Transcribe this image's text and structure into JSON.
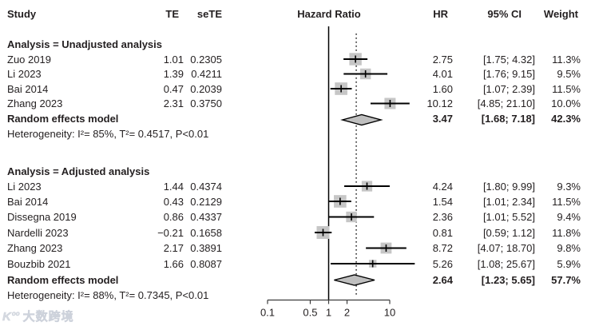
{
  "chart_data": {
    "type": "scatter",
    "subtype": "forest_plot",
    "title": "Hazard Ratio",
    "xscale": "log",
    "xlim": [
      0.1,
      26
    ],
    "grid": false,
    "axis": {
      "ticks": [
        0.1,
        0.5,
        1,
        2,
        10
      ],
      "tick_labels": [
        "0.1",
        "0.5",
        "1",
        "2",
        "10"
      ],
      "solid_ref": 1,
      "dotted_ref": 2.83
    },
    "columns": {
      "study": "Study",
      "te": "TE",
      "sete": "seTE",
      "plot": "Hazard Ratio",
      "hr": "HR",
      "ci": "95% CI",
      "weight": "Weight"
    },
    "sections": [
      {
        "label": "Analysis = Unadjusted analysis",
        "studies": [
          {
            "study": "Zuo 2019",
            "te": "1.01",
            "sete": "0.2305",
            "hr": 2.75,
            "lo": 1.75,
            "hi": 4.32,
            "hr_text": "2.75",
            "ci_text": "[1.75; 4.32]",
            "weight": 11.3,
            "weight_text": "11.3%"
          },
          {
            "study": "Li 2023",
            "te": "1.39",
            "sete": "0.4211",
            "hr": 4.01,
            "lo": 1.76,
            "hi": 9.15,
            "hr_text": "4.01",
            "ci_text": "[1.76; 9.15]",
            "weight": 9.5,
            "weight_text": "9.5%"
          },
          {
            "study": "Bai 2014",
            "te": "0.47",
            "sete": "0.2039",
            "hr": 1.6,
            "lo": 1.07,
            "hi": 2.39,
            "hr_text": "1.60",
            "ci_text": "[1.07; 2.39]",
            "weight": 11.5,
            "weight_text": "11.5%"
          },
          {
            "study": "Zhang 2023",
            "te": "2.31",
            "sete": "0.3750",
            "hr": 10.12,
            "lo": 4.85,
            "hi": 21.1,
            "hr_text": "10.12",
            "ci_text": "[4.85; 21.10]",
            "weight": 10.0,
            "weight_text": "10.0%"
          }
        ],
        "summary": {
          "label": "Random effects model",
          "hr": 3.47,
          "lo": 1.68,
          "hi": 7.18,
          "hr_text": "3.47",
          "ci_text": "[1.68; 7.18]",
          "weight_text": "42.3%"
        },
        "heterogeneity": "Heterogeneity: I²= 85%, T²= 0.4517, P<0.01"
      },
      {
        "label": "Analysis = Adjusted analysis",
        "studies": [
          {
            "study": "Li 2023",
            "te": "1.44",
            "sete": "0.4374",
            "hr": 4.24,
            "lo": 1.8,
            "hi": 9.99,
            "hr_text": "4.24",
            "ci_text": "[1.80; 9.99]",
            "weight": 9.3,
            "weight_text": "9.3%"
          },
          {
            "study": "Bai 2014",
            "te": "0.43",
            "sete": "0.2129",
            "hr": 1.54,
            "lo": 1.01,
            "hi": 2.34,
            "hr_text": "1.54",
            "ci_text": "[1.01; 2.34]",
            "weight": 11.5,
            "weight_text": "11.5%"
          },
          {
            "study": "Dissegna 2019",
            "te": "0.86",
            "sete": "0.4337",
            "hr": 2.36,
            "lo": 1.01,
            "hi": 5.52,
            "hr_text": "2.36",
            "ci_text": "[1.01; 5.52]",
            "weight": 9.4,
            "weight_text": "9.4%"
          },
          {
            "study": "Nardelli 2023",
            "te": "−0.21",
            "sete": "0.1658",
            "hr": 0.81,
            "lo": 0.59,
            "hi": 1.12,
            "hr_text": "0.81",
            "ci_text": "[0.59; 1.12]",
            "weight": 11.8,
            "weight_text": "11.8%"
          },
          {
            "study": "Zhang 2023",
            "te": "2.17",
            "sete": "0.3891",
            "hr": 8.72,
            "lo": 4.07,
            "hi": 18.7,
            "hr_text": "8.72",
            "ci_text": "[4.07; 18.70]",
            "weight": 9.8,
            "weight_text": "9.8%"
          },
          {
            "study": "Bouzbib 2021",
            "te": "1.66",
            "sete": "0.8087",
            "hr": 5.26,
            "lo": 1.08,
            "hi": 25.67,
            "hr_text": "5.26",
            "ci_text": "[1.08; 25.67]",
            "weight": 5.9,
            "weight_text": "5.9%"
          }
        ],
        "summary": {
          "label": "Random effects model",
          "hr": 2.64,
          "lo": 1.23,
          "hi": 5.65,
          "hr_text": "2.64",
          "ci_text": "[1.23; 5.65]",
          "weight_text": "57.7%"
        },
        "heterogeneity": "Heterogeneity: I²= 88%, T²= 0.7345, P<0.01"
      }
    ],
    "colors": {
      "marker_fill": "#c6c6c6",
      "diamond_fill": "#bfbfbf",
      "line": "#000000",
      "axis": "#3c3c3c",
      "text": "#231f20"
    }
  },
  "watermark": {
    "logo": "K",
    "logo_sup": "oo",
    "text": "大数跨境"
  }
}
